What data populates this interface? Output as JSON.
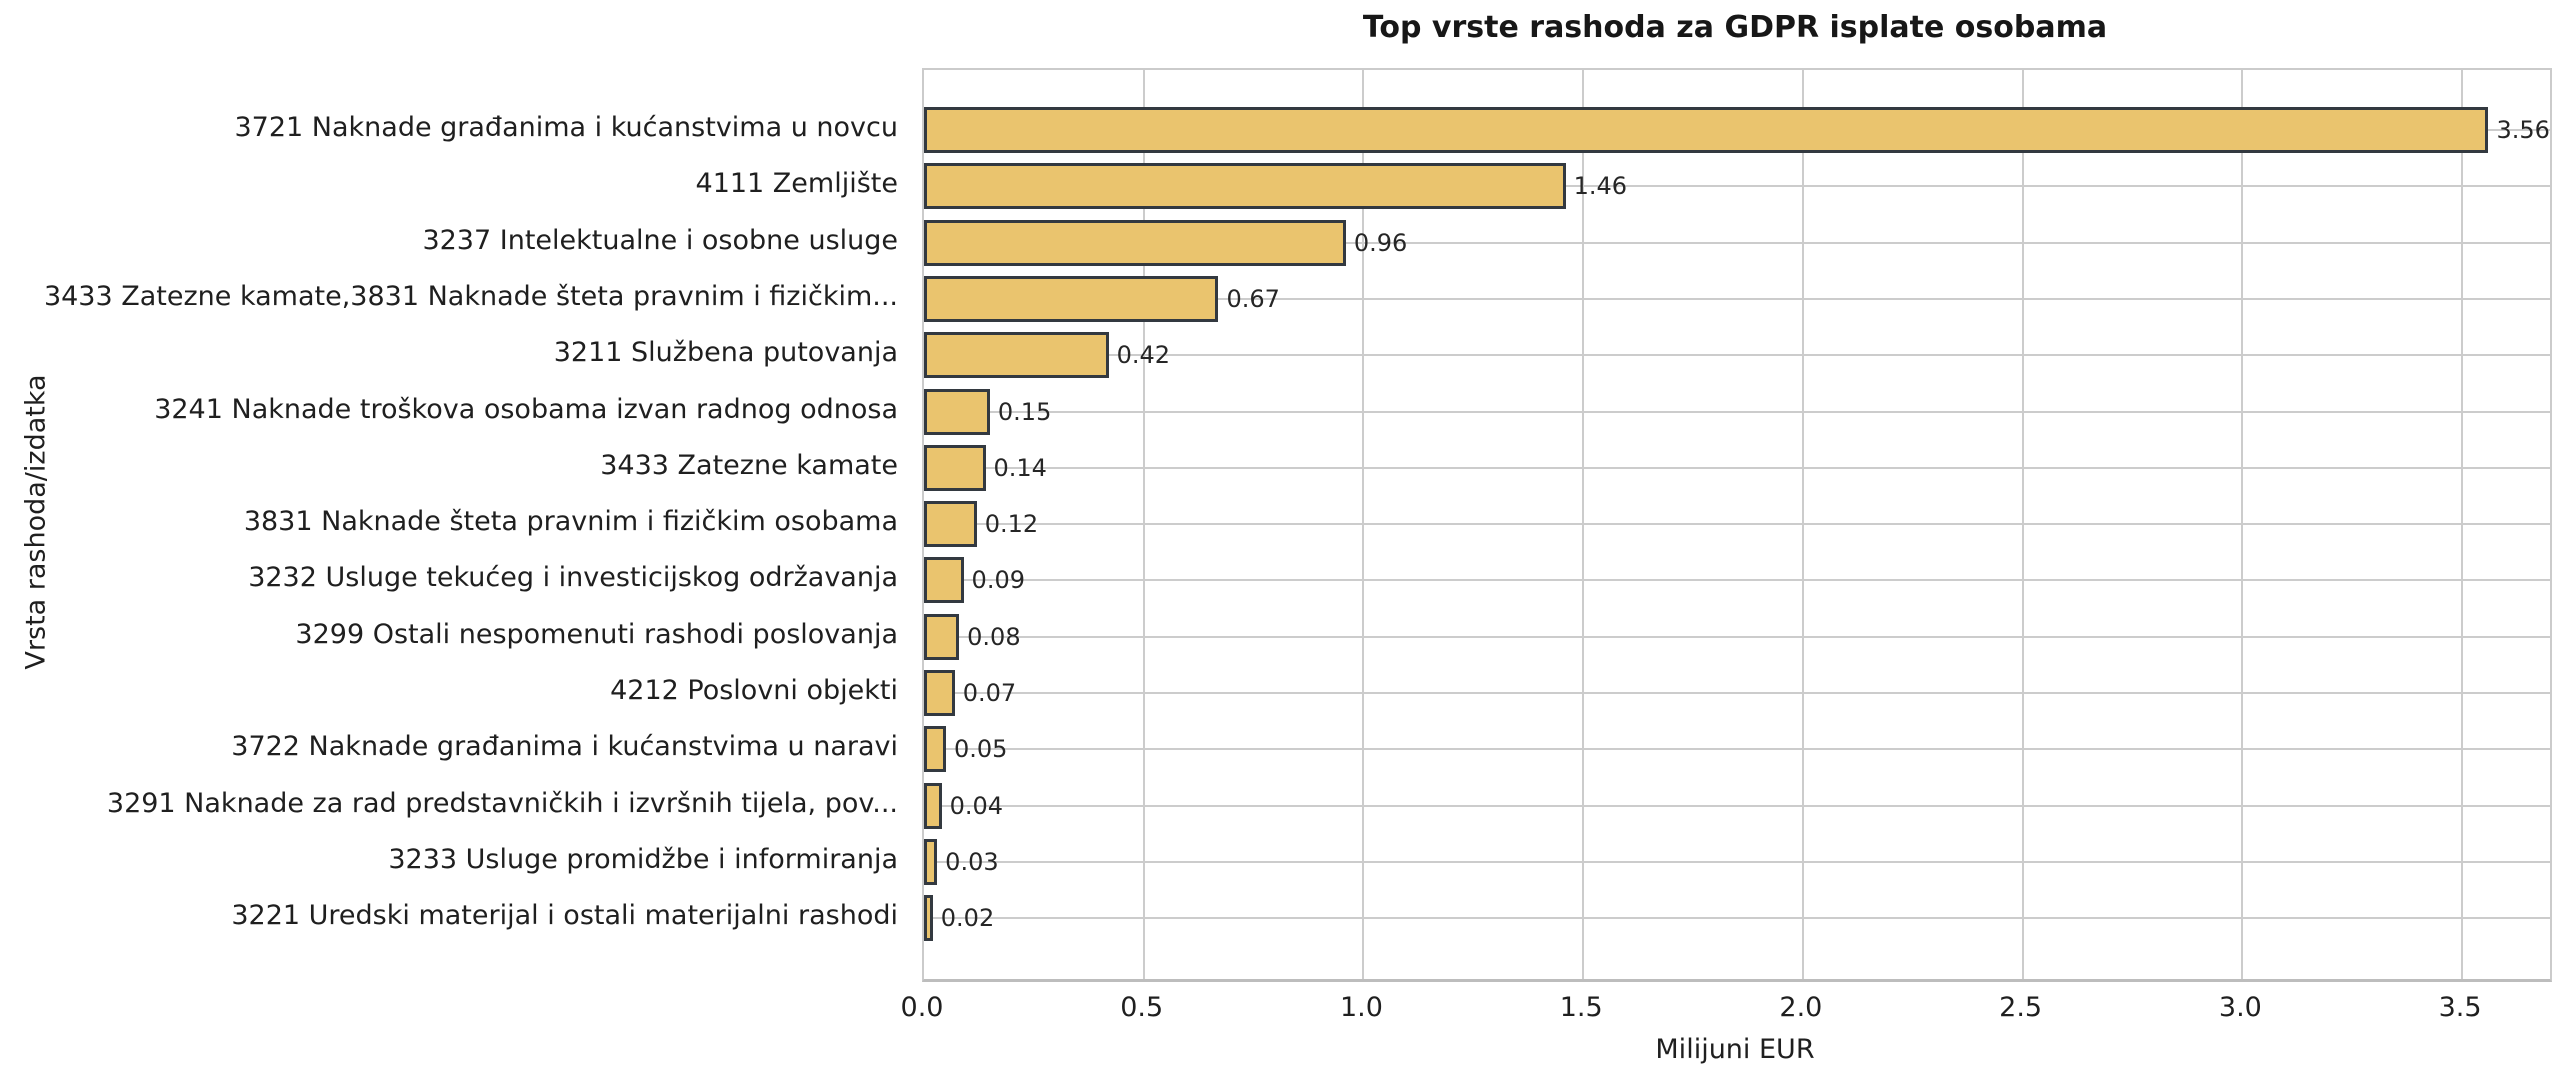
{
  "chart_data": {
    "type": "bar",
    "orientation": "horizontal",
    "title": "Top vrste rashoda za GDPR isplate osobama",
    "xlabel": "Milijuni EUR",
    "ylabel": "Vrsta rashoda/izdatka",
    "categories": [
      "3721 Naknade građanima i kućanstvima u novcu",
      "4111 Zemljište",
      "3237 Intelektualne i osobne usluge",
      "3433 Zatezne kamate,3831 Naknade šteta pravnim i fizičkim...",
      "3211 Službena putovanja",
      "3241 Naknade troškova osobama izvan radnog odnosa",
      "3433 Zatezne kamate",
      "3831 Naknade šteta pravnim i fizičkim osobama",
      "3232 Usluge tekućeg i investicijskog održavanja",
      "3299 Ostali nespomenuti rashodi poslovanja",
      "4212 Poslovni objekti",
      "3722 Naknade građanima i kućanstvima u naravi",
      "3291 Naknade za rad predstavničkih i izvršnih tijela, pov...",
      "3233 Usluge promidžbe i informiranja",
      "3221 Uredski materijal i ostali materijalni rashodi"
    ],
    "values": [
      3.56,
      1.46,
      0.96,
      0.67,
      0.42,
      0.15,
      0.14,
      0.12,
      0.09,
      0.08,
      0.07,
      0.05,
      0.04,
      0.03,
      0.02
    ],
    "value_labels": [
      "3.56",
      "1.46",
      "0.96",
      "0.67",
      "0.42",
      "0.15",
      "0.14",
      "0.12",
      "0.09",
      "0.08",
      "0.07",
      "0.05",
      "0.04",
      "0.03",
      "0.02"
    ],
    "x_ticks": [
      "0.0",
      "0.5",
      "1.0",
      "1.5",
      "2.0",
      "2.5",
      "3.0",
      "3.5"
    ],
    "xlim": [
      0,
      3.7
    ],
    "grid": true,
    "legend": "none",
    "bar_color": "#eac46e",
    "bar_edge_color": "#333940",
    "grid_color": "#cccccc",
    "background_color": "#ffffff"
  }
}
